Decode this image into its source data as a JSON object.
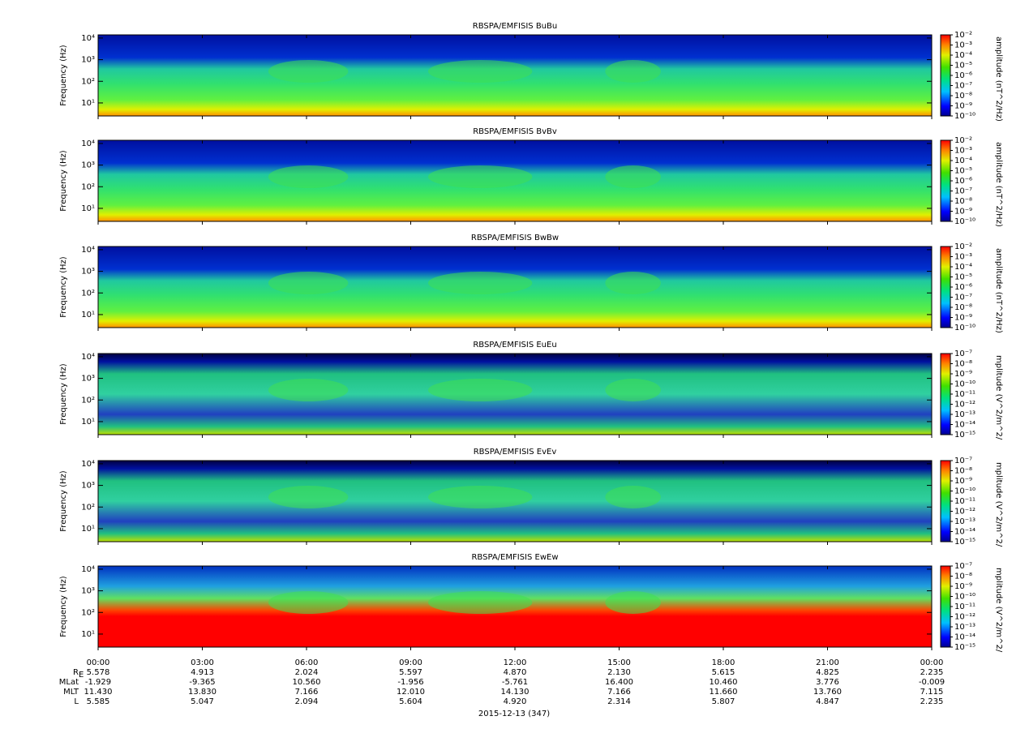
{
  "chart_data": [
    {
      "type": "spectrogram",
      "title": "RBSPA/EMFISIS  BuBu",
      "ylabel": "Frequency (Hz)",
      "ylog": true,
      "ylim": [
        2.5,
        14000
      ],
      "yticks": [
        {
          "value": 10,
          "label": "10¹"
        },
        {
          "value": 100,
          "label": "10²"
        },
        {
          "value": 1000,
          "label": "10³"
        },
        {
          "value": 10000,
          "label": "10⁴"
        }
      ],
      "colorbar": {
        "label": "amplitude (nT^2/Hz)",
        "lim": [
          1e-10,
          0.01
        ],
        "ticks": [
          {
            "value": 0.01,
            "label": "10⁻²"
          },
          {
            "value": 0.001,
            "label": "10⁻³"
          },
          {
            "value": 0.0001,
            "label": "10⁻⁴"
          },
          {
            "value": 1e-05,
            "label": "10⁻⁵"
          },
          {
            "value": 1e-06,
            "label": "10⁻⁶"
          },
          {
            "value": 1e-07,
            "label": "10⁻⁷"
          },
          {
            "value": 1e-08,
            "label": "10⁻⁸"
          },
          {
            "value": 1e-09,
            "label": "10⁻⁹"
          },
          {
            "value": 1e-10,
            "label": "10⁻¹⁰"
          }
        ]
      }
    },
    {
      "type": "spectrogram",
      "title": "RBSPA/EMFISIS  BvBv",
      "ylabel": "Frequency (Hz)",
      "ylog": true,
      "ylim": [
        2.5,
        14000
      ],
      "yticks": [
        {
          "value": 10,
          "label": "10¹"
        },
        {
          "value": 100,
          "label": "10²"
        },
        {
          "value": 1000,
          "label": "10³"
        },
        {
          "value": 10000,
          "label": "10⁴"
        }
      ],
      "colorbar": {
        "label": "amplitude (nT^2/Hz)",
        "lim": [
          1e-10,
          0.01
        ],
        "ticks": [
          {
            "value": 0.01,
            "label": "10⁻²"
          },
          {
            "value": 0.001,
            "label": "10⁻³"
          },
          {
            "value": 0.0001,
            "label": "10⁻⁴"
          },
          {
            "value": 1e-05,
            "label": "10⁻⁵"
          },
          {
            "value": 1e-06,
            "label": "10⁻⁶"
          },
          {
            "value": 1e-07,
            "label": "10⁻⁷"
          },
          {
            "value": 1e-08,
            "label": "10⁻⁸"
          },
          {
            "value": 1e-09,
            "label": "10⁻⁹"
          },
          {
            "value": 1e-10,
            "label": "10⁻¹⁰"
          }
        ]
      }
    },
    {
      "type": "spectrogram",
      "title": "RBSPA/EMFISIS  BwBw",
      "ylabel": "Frequency (Hz)",
      "ylog": true,
      "ylim": [
        2.5,
        14000
      ],
      "yticks": [
        {
          "value": 10,
          "label": "10¹"
        },
        {
          "value": 100,
          "label": "10²"
        },
        {
          "value": 1000,
          "label": "10³"
        },
        {
          "value": 10000,
          "label": "10⁴"
        }
      ],
      "colorbar": {
        "label": "amplitude (nT^2/Hz)",
        "lim": [
          1e-10,
          0.01
        ],
        "ticks": [
          {
            "value": 0.01,
            "label": "10⁻²"
          },
          {
            "value": 0.001,
            "label": "10⁻³"
          },
          {
            "value": 0.0001,
            "label": "10⁻⁴"
          },
          {
            "value": 1e-05,
            "label": "10⁻⁵"
          },
          {
            "value": 1e-06,
            "label": "10⁻⁶"
          },
          {
            "value": 1e-07,
            "label": "10⁻⁷"
          },
          {
            "value": 1e-08,
            "label": "10⁻⁸"
          },
          {
            "value": 1e-09,
            "label": "10⁻⁹"
          },
          {
            "value": 1e-10,
            "label": "10⁻¹⁰"
          }
        ]
      }
    },
    {
      "type": "spectrogram",
      "title": "RBSPA/EMFISIS  EuEu",
      "ylabel": "Frequency (Hz)",
      "ylog": true,
      "ylim": [
        2.5,
        14000
      ],
      "yticks": [
        {
          "value": 10,
          "label": "10¹"
        },
        {
          "value": 100,
          "label": "10²"
        },
        {
          "value": 1000,
          "label": "10³"
        },
        {
          "value": 10000,
          "label": "10⁴"
        }
      ],
      "colorbar": {
        "label": "mplitude (V^2/m^2/",
        "lim": [
          1e-15,
          1e-07
        ],
        "ticks": [
          {
            "value": 1e-07,
            "label": "10⁻⁷"
          },
          {
            "value": 1e-08,
            "label": "10⁻⁸"
          },
          {
            "value": 1e-09,
            "label": "10⁻⁹"
          },
          {
            "value": 1e-10,
            "label": "10⁻¹⁰"
          },
          {
            "value": 1e-11,
            "label": "10⁻¹¹"
          },
          {
            "value": 1e-12,
            "label": "10⁻¹²"
          },
          {
            "value": 1e-13,
            "label": "10⁻¹³"
          },
          {
            "value": 1e-14,
            "label": "10⁻¹⁴"
          },
          {
            "value": 1e-15,
            "label": "10⁻¹⁵"
          }
        ]
      }
    },
    {
      "type": "spectrogram",
      "title": "RBSPA/EMFISIS  EvEv",
      "ylabel": "Frequency (Hz)",
      "ylog": true,
      "ylim": [
        2.5,
        14000
      ],
      "yticks": [
        {
          "value": 10,
          "label": "10¹"
        },
        {
          "value": 100,
          "label": "10²"
        },
        {
          "value": 1000,
          "label": "10³"
        },
        {
          "value": 10000,
          "label": "10⁴"
        }
      ],
      "colorbar": {
        "label": "mplitude (V^2/m^2/",
        "lim": [
          1e-15,
          1e-07
        ],
        "ticks": [
          {
            "value": 1e-07,
            "label": "10⁻⁷"
          },
          {
            "value": 1e-08,
            "label": "10⁻⁸"
          },
          {
            "value": 1e-09,
            "label": "10⁻⁹"
          },
          {
            "value": 1e-10,
            "label": "10⁻¹⁰"
          },
          {
            "value": 1e-11,
            "label": "10⁻¹¹"
          },
          {
            "value": 1e-12,
            "label": "10⁻¹²"
          },
          {
            "value": 1e-13,
            "label": "10⁻¹³"
          },
          {
            "value": 1e-14,
            "label": "10⁻¹⁴"
          },
          {
            "value": 1e-15,
            "label": "10⁻¹⁵"
          }
        ]
      }
    },
    {
      "type": "spectrogram",
      "title": "RBSPA/EMFISIS  EwEw",
      "ylabel": "Frequency (Hz)",
      "ylog": true,
      "ylim": [
        2.5,
        14000
      ],
      "yticks": [
        {
          "value": 10,
          "label": "10¹"
        },
        {
          "value": 100,
          "label": "10²"
        },
        {
          "value": 1000,
          "label": "10³"
        },
        {
          "value": 10000,
          "label": "10⁴"
        }
      ],
      "colorbar": {
        "label": "mplitude (V^2/m^2/",
        "lim": [
          1e-15,
          1e-07
        ],
        "ticks": [
          {
            "value": 1e-07,
            "label": "10⁻⁷"
          },
          {
            "value": 1e-08,
            "label": "10⁻⁸"
          },
          {
            "value": 1e-09,
            "label": "10⁻⁹"
          },
          {
            "value": 1e-10,
            "label": "10⁻¹⁰"
          },
          {
            "value": 1e-11,
            "label": "10⁻¹¹"
          },
          {
            "value": 1e-12,
            "label": "10⁻¹²"
          },
          {
            "value": 1e-13,
            "label": "10⁻¹³"
          },
          {
            "value": 1e-14,
            "label": "10⁻¹⁴"
          },
          {
            "value": 1e-15,
            "label": "10⁻¹⁵"
          }
        ]
      }
    }
  ],
  "x_axis": {
    "xlim": [
      0,
      24
    ],
    "xticks": [
      {
        "value": 0,
        "label": "00:00"
      },
      {
        "value": 3,
        "label": "03:00"
      },
      {
        "value": 6,
        "label": "06:00"
      },
      {
        "value": 9,
        "label": "09:00"
      },
      {
        "value": 12,
        "label": "12:00"
      },
      {
        "value": 15,
        "label": "15:00"
      },
      {
        "value": 18,
        "label": "18:00"
      },
      {
        "value": 21,
        "label": "21:00"
      },
      {
        "value": 24,
        "label": "00:00"
      }
    ],
    "ephemeris": [
      {
        "label": "R",
        "subscript": "E",
        "values": [
          "5.578",
          "4.913",
          "2.024",
          "5.597",
          "4.870",
          "2.130",
          "5.615",
          "4.825",
          "2.235"
        ]
      },
      {
        "label": "MLat",
        "values": [
          "-1.929",
          "-9.365",
          "10.560",
          "-1.956",
          "-5.761",
          "16.400",
          "10.460",
          "3.776",
          "-0.009"
        ]
      },
      {
        "label": "MLT",
        "values": [
          "11.430",
          "13.830",
          "7.166",
          "12.010",
          "14.130",
          "7.166",
          "11.660",
          "13.760",
          "7.115"
        ]
      },
      {
        "label": "L",
        "values": [
          "5.585",
          "5.047",
          "2.094",
          "5.604",
          "4.920",
          "2.314",
          "5.807",
          "4.847",
          "2.235"
        ]
      }
    ],
    "date": "2015-12-13 (347)"
  }
}
